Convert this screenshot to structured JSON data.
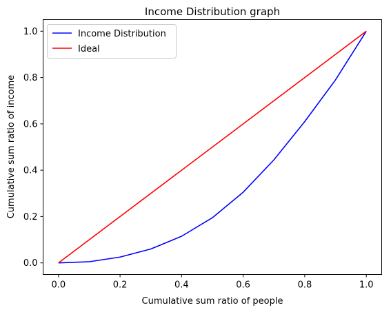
{
  "chart_data": {
    "type": "line",
    "title": "Income Distribution graph",
    "xlabel": "Cumulative sum ratio of people",
    "ylabel": "Cumulative sum ratio of income",
    "xlim": [
      -0.05,
      1.05
    ],
    "ylim": [
      -0.05,
      1.05
    ],
    "xticks": [
      "0.0",
      "0.2",
      "0.4",
      "0.6",
      "0.8",
      "1.0"
    ],
    "yticks": [
      "0.0",
      "0.2",
      "0.4",
      "0.6",
      "0.8",
      "1.0"
    ],
    "grid": false,
    "legend_position": "upper-left",
    "series": [
      {
        "name": "Income Distribution",
        "color": "#0000ff",
        "x": [
          0.0,
          0.1,
          0.2,
          0.3,
          0.4,
          0.5,
          0.6,
          0.7,
          0.8,
          0.9,
          1.0
        ],
        "y": [
          0.0,
          0.005,
          0.025,
          0.06,
          0.115,
          0.195,
          0.305,
          0.445,
          0.61,
          0.79,
          1.0
        ]
      },
      {
        "name": "Ideal",
        "color": "#ff0000",
        "x": [
          0.0,
          1.0
        ],
        "y": [
          0.0,
          1.0
        ]
      }
    ]
  }
}
